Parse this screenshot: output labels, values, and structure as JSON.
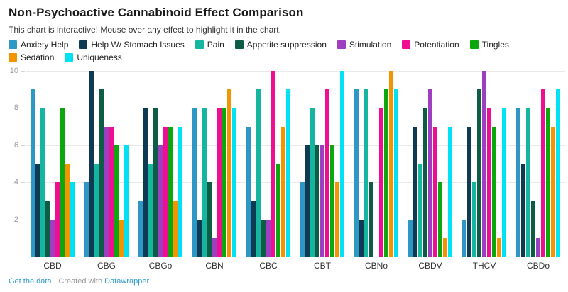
{
  "header": {
    "title": "Non-Psychoactive Cannabinoid Effect Comparison",
    "subtitle": "This chart is interactive! Mouse over any effect to highlight it in the chart."
  },
  "chart_data": {
    "type": "bar",
    "title": "Non-Psychoactive Cannabinoid Effect Comparison",
    "categories": [
      "CBD",
      "CBG",
      "CBGo",
      "CBN",
      "CBC",
      "CBT",
      "CBNo",
      "CBDV",
      "THCV",
      "CBDo"
    ],
    "series": [
      {
        "name": "Anxiety Help",
        "color": "#2f97c5",
        "values": [
          9,
          4,
          3,
          8,
          7,
          4,
          9,
          2,
          2,
          8
        ]
      },
      {
        "name": "Help W/ Stomach Issues",
        "color": "#0e3a53",
        "values": [
          5,
          10,
          8,
          2,
          3,
          6,
          2,
          7,
          7,
          5
        ]
      },
      {
        "name": "Pain",
        "color": "#15b5a0",
        "values": [
          8,
          5,
          5,
          8,
          9,
          8,
          9,
          5,
          4,
          8
        ]
      },
      {
        "name": "Appetite suppression",
        "color": "#0c5c46",
        "values": [
          3,
          9,
          8,
          4,
          2,
          6,
          4,
          8,
          9,
          3
        ]
      },
      {
        "name": "Stimulation",
        "color": "#9e3ec1",
        "values": [
          2,
          7,
          6,
          1,
          2,
          6,
          0,
          9,
          10,
          1
        ]
      },
      {
        "name": "Potentiation",
        "color": "#ef0d92",
        "values": [
          4,
          7,
          7,
          8,
          10,
          9,
          8,
          7,
          8,
          9
        ]
      },
      {
        "name": "Tingles",
        "color": "#0ca70c",
        "values": [
          8,
          6,
          7,
          8,
          5,
          6,
          9,
          4,
          7,
          8
        ]
      },
      {
        "name": "Sedation",
        "color": "#f39500",
        "values": [
          5,
          2,
          3,
          9,
          7,
          4,
          10,
          1,
          1,
          7
        ]
      },
      {
        "name": "Uniqueness",
        "color": "#00e1f6",
        "values": [
          4,
          6,
          7,
          8,
          9,
          10,
          9,
          7,
          8,
          9
        ]
      }
    ],
    "ylim": [
      0,
      10
    ],
    "yticks": [
      2,
      4,
      6,
      8,
      10
    ],
    "grid": true,
    "legend_position": "top"
  },
  "footer": {
    "get_data_label": "Get the data",
    "separator": "·",
    "created_with": "Created with",
    "brand": "Datawrapper"
  },
  "colors": {
    "link": "#2e9ac9",
    "axis_label": "#9b9b9b",
    "gridline": "#e9e9e9",
    "baseline": "#c4c4c4"
  }
}
